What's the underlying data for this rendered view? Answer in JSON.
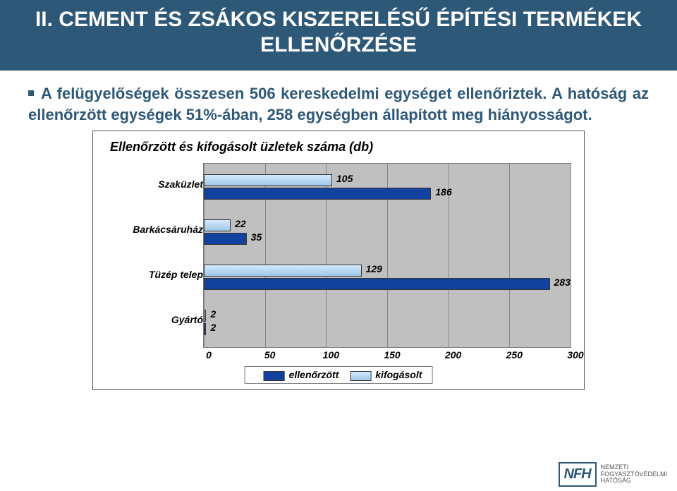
{
  "header": {
    "title": "II. CEMENT ÉS ZSÁKOS KISZERELÉSŰ ÉPÍTÉSI TERMÉKEK ELLENŐRZÉSE"
  },
  "paragraph": {
    "text": "A felügyelőségek összesen 506 kereskedelmi egységet ellenőriztek. A hatóság az ellenőrzött egységek 51%-ában, 258 egységben állapított meg hiányosságot."
  },
  "chart": {
    "title": "Ellenőrzött és kifogásolt üzletek száma (db)",
    "type": "bar",
    "orientation": "horizontal",
    "xlim": [
      0,
      300
    ],
    "xtick_step": 50,
    "xticks": [
      "0",
      "50",
      "100",
      "150",
      "200",
      "250",
      "300"
    ],
    "plot_bg": "#c0c0c0",
    "grid_color": "#888888",
    "categories": [
      {
        "label": "Szaküzlet",
        "kifogasolt": 105,
        "ellenorzott": 186
      },
      {
        "label": "Barkácsáruház",
        "kifogasolt": 22,
        "ellenorzott": 35
      },
      {
        "label": "Tüzép telep",
        "kifogasolt": 129,
        "ellenorzott": 283
      },
      {
        "label": "Gyártó",
        "kifogasolt": 2,
        "ellenorzott": 2
      }
    ],
    "series": {
      "ellenorzott": {
        "label": "ellenőrzött",
        "color": "#13419e"
      },
      "kifogasolt": {
        "label": "kifogásolt",
        "color": "#9cc7e6"
      }
    }
  },
  "footer": {
    "logo_abbr": "NFH",
    "logo_lines": [
      "NEMZETI",
      "FOGYASZTÓVÉDELMI",
      "HATÓSÁG"
    ]
  }
}
